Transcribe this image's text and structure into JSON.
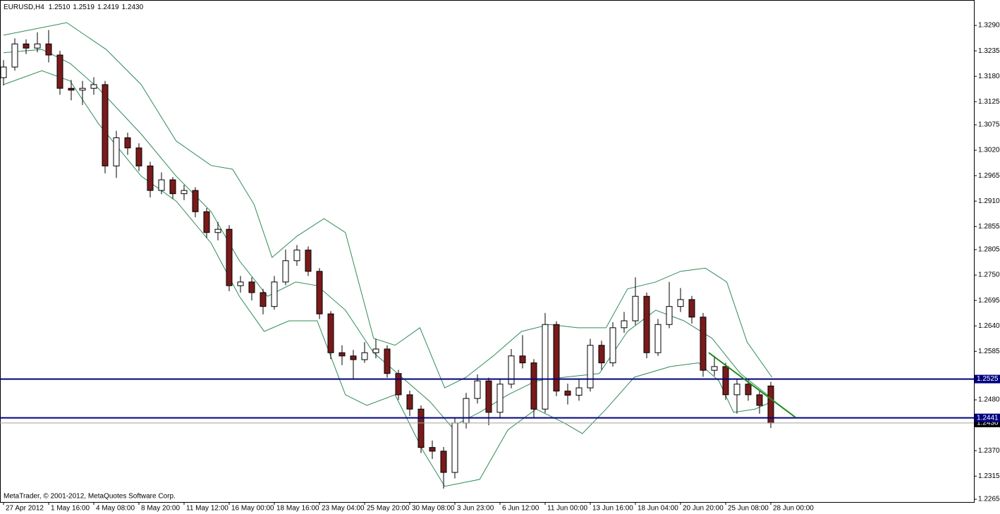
{
  "chart_data": {
    "type": "candlestick",
    "symbol": "EURUSD,H4",
    "quote": [
      "1.2510",
      "1.2519",
      "1.2419",
      "1.2430"
    ],
    "footer": "MetaTrader, © 2001-2012, MetaQuotes Software Corp.",
    "categories": [
      "27 Apr 2012",
      null,
      null,
      null,
      "1 May 16:00",
      null,
      null,
      null,
      "4 May 08:00",
      null,
      null,
      null,
      "8 May 20:00",
      null,
      null,
      null,
      "11 May 12:00",
      null,
      null,
      null,
      "16 May 00:00",
      null,
      null,
      null,
      "18 May 16:00",
      null,
      null,
      null,
      "23 May 04:00",
      null,
      null,
      null,
      "25 May 20:00",
      null,
      null,
      null,
      "30 May 08:00",
      null,
      null,
      null,
      "3 Jun 23:00",
      null,
      null,
      null,
      "6 Jun 12:00",
      null,
      null,
      null,
      "11 Jun 00:00",
      null,
      null,
      null,
      "13 Jun 16:00",
      null,
      null,
      null,
      "18 Jun 04:00",
      null,
      null,
      null,
      "20 Jun 20:00",
      null,
      null,
      null,
      "25 Jun 08:00",
      null,
      null,
      null,
      "28 Jun 00:00"
    ],
    "open": [
      1.3177,
      1.32,
      1.325,
      1.3241,
      1.325,
      1.3226,
      1.3154,
      1.315,
      1.3154,
      1.3162,
      1.2986,
      1.3047,
      1.3025,
      1.2986,
      1.2933,
      1.2956,
      1.2926,
      1.2933,
      1.2887,
      1.2842,
      1.2849,
      1.2727,
      1.2735,
      1.2712,
      1.2682,
      1.2735,
      1.2781,
      1.2804,
      1.2758,
      1.2666,
      1.2582,
      1.2575,
      1.2567,
      1.2582,
      1.259,
      1.2537,
      1.2491,
      1.246,
      1.2377,
      1.2369,
      1.2323,
      1.243,
      1.2483,
      1.2521,
      1.2453,
      1.2514,
      1.2575,
      1.256,
      1.246,
      1.2643,
      1.2499,
      1.249,
      1.2506,
      1.2598,
      1.256,
      1.2636,
      1.2651,
      1.2704,
      1.2582,
      1.2643,
      1.2682,
      1.2697,
      1.2659,
      1.2544,
      1.2552,
      1.2491,
      1.2514,
      1.2491,
      1.251
    ],
    "high": [
      1.3215,
      1.3262,
      1.326,
      1.3275,
      1.328,
      1.3235,
      1.3172,
      1.317,
      1.3178,
      1.317,
      1.3062,
      1.3058,
      1.3035,
      1.2995,
      1.2972,
      1.2962,
      1.2945,
      1.294,
      1.2895,
      1.2865,
      1.2858,
      1.2748,
      1.2745,
      1.272,
      1.2748,
      1.2805,
      1.2815,
      1.2812,
      1.2765,
      1.2672,
      1.2598,
      1.2588,
      1.2605,
      1.2612,
      1.2598,
      1.2545,
      1.25,
      1.2468,
      1.2392,
      1.2378,
      1.244,
      1.2495,
      1.2535,
      1.2528,
      1.2525,
      1.259,
      1.262,
      1.2568,
      1.2668,
      1.265,
      1.2515,
      1.2525,
      1.2612,
      1.2608,
      1.2648,
      1.267,
      1.2745,
      1.2712,
      1.2655,
      1.2735,
      1.2722,
      1.2705,
      1.2668,
      1.2575,
      1.256,
      1.2525,
      1.2522,
      1.25,
      1.2519
    ],
    "low": [
      1.316,
      1.3192,
      1.3228,
      1.3232,
      1.321,
      1.314,
      1.3128,
      1.3118,
      1.314,
      1.297,
      1.296,
      1.301,
      1.2975,
      1.2918,
      1.2925,
      1.2915,
      1.2912,
      1.2875,
      1.283,
      1.2825,
      1.2715,
      1.2712,
      1.2695,
      1.2665,
      1.2675,
      1.2728,
      1.277,
      1.2748,
      1.2655,
      1.2568,
      1.2555,
      1.2525,
      1.256,
      1.257,
      1.2528,
      1.248,
      1.2445,
      1.2365,
      1.2352,
      1.2288,
      1.231,
      1.2418,
      1.2472,
      1.2425,
      1.244,
      1.2505,
      1.2548,
      1.244,
      1.2452,
      1.2488,
      1.247,
      1.2478,
      1.2498,
      1.2545,
      1.2552,
      1.2625,
      1.2642,
      1.257,
      1.2575,
      1.2635,
      1.267,
      1.2645,
      1.253,
      1.2532,
      1.248,
      1.245,
      1.2478,
      1.245,
      1.2419
    ],
    "close": [
      1.32,
      1.325,
      1.3241,
      1.325,
      1.3226,
      1.3154,
      1.315,
      1.3154,
      1.3162,
      1.2986,
      1.3047,
      1.3025,
      1.2986,
      1.2933,
      1.2956,
      1.2926,
      1.2933,
      1.2887,
      1.2842,
      1.2849,
      1.2727,
      1.2735,
      1.2712,
      1.2682,
      1.2735,
      1.2781,
      1.2804,
      1.2758,
      1.2666,
      1.2582,
      1.2575,
      1.2567,
      1.2582,
      1.259,
      1.2537,
      1.2491,
      1.246,
      1.2377,
      1.2369,
      1.2323,
      1.243,
      1.2483,
      1.2521,
      1.2453,
      1.2514,
      1.2575,
      1.256,
      1.246,
      1.2643,
      1.2499,
      1.249,
      1.2506,
      1.2598,
      1.256,
      1.2636,
      1.2651,
      1.2704,
      1.2582,
      1.2643,
      1.2682,
      1.2697,
      1.2659,
      1.2544,
      1.2552,
      1.2491,
      1.2514,
      1.2491,
      1.2468,
      1.243
    ],
    "up_color": "#ffffff",
    "down_color": "#7a1a1a",
    "wick_color": "#000000",
    "bands": [
      {
        "color": "#2e8b57",
        "x": [
          0,
          5.6,
          9.1,
          12.2,
          15.3,
          18.4,
          20.3,
          22.2,
          23.8,
          26,
          28.4,
          30.3,
          32.8,
          34.7,
          36.9,
          39.1,
          41,
          43.4,
          45.9,
          48.4,
          50.9,
          53.4,
          55.3,
          57.8,
          60,
          62.2,
          64.1,
          65.9,
          68.1
        ],
        "values": [
          1.3269,
          1.3296,
          1.3238,
          1.3162,
          1.304,
          1.2987,
          1.2979,
          1.2903,
          1.2788,
          1.2834,
          1.2872,
          1.2842,
          1.2613,
          1.2598,
          1.2636,
          1.2506,
          1.2529,
          1.2575,
          1.2628,
          1.2643,
          1.2636,
          1.2636,
          1.272,
          1.2735,
          1.2758,
          1.2765,
          1.2735,
          1.2605,
          1.2529
        ]
      },
      {
        "color": "#2e8b57",
        "x": [
          0,
          3.4,
          5.9,
          8.4,
          12.2,
          15.3,
          18.4,
          20.9,
          23.4,
          25.9,
          27.8,
          30.3,
          32.8,
          35.3,
          37.8,
          39.7,
          42.2,
          44.7,
          47.2,
          49.7,
          52.8,
          55.3,
          57.8,
          60.3,
          62.8,
          65.3,
          68.1
        ],
        "values": [
          1.3231,
          1.3238,
          1.3208,
          1.3154,
          1.3055,
          1.2964,
          1.2887,
          1.2781,
          1.2704,
          1.2735,
          1.2727,
          1.2674,
          1.2582,
          1.2529,
          1.2476,
          1.2422,
          1.2453,
          1.2491,
          1.2521,
          1.2529,
          1.2537,
          1.2628,
          1.2674,
          1.2651,
          1.2613,
          1.2537,
          1.2483
        ]
      },
      {
        "color": "#2e8b57",
        "x": [
          0,
          3.4,
          5.9,
          8.4,
          12.2,
          15.3,
          18.4,
          20.9,
          23.1,
          25.3,
          27.8,
          30.3,
          32.2,
          34.7,
          37.2,
          39.1,
          42.2,
          44.7,
          47.2,
          49.7,
          51.3,
          53.4,
          55.9,
          59.1,
          61.6,
          63.4,
          64.7,
          66.6,
          68.1
        ],
        "values": [
          1.3162,
          1.3192,
          1.317,
          1.3078,
          1.2964,
          1.291,
          1.2819,
          1.2704,
          1.2628,
          1.2651,
          1.2651,
          1.2491,
          1.2468,
          1.2491,
          1.2369,
          1.2293,
          1.2308,
          1.2415,
          1.246,
          1.243,
          1.2407,
          1.246,
          1.2529,
          1.2552,
          1.256,
          1.2521,
          1.2453,
          1.246,
          1.2476
        ]
      }
    ],
    "hlines": [
      {
        "value": 1.2525,
        "label": "1.2525",
        "color": "#000080"
      },
      {
        "value": 1.2441,
        "label": "1.2441",
        "color": "#000080"
      }
    ],
    "bid": {
      "value": 1.243,
      "label": "1.2430",
      "color": "#a0a0a0"
    },
    "trendline": {
      "color": "#1f8a1f",
      "x": [
        62.5,
        70.2
      ],
      "values": [
        1.2582,
        1.2442
      ]
    },
    "xlim": [
      -0.3125,
      86
    ],
    "ylim": [
      1.2259,
      1.3345
    ],
    "yticks": [
      {
        "value": 1.329,
        "label": "1.3290"
      },
      1.3235,
      {
        "value": 1.318,
        "label": "1.3180"
      },
      1.3125,
      1.3075,
      {
        "value": 1.302,
        "label": "1.3020"
      },
      1.2965,
      {
        "value": 1.291,
        "label": "1.2910"
      },
      1.2855,
      1.2805,
      {
        "value": 1.275,
        "label": "1.2750"
      },
      1.2695,
      {
        "value": 1.264,
        "label": "1.2640"
      },
      1.2585,
      {
        "value": 1.248,
        "label": "1.2480"
      },
      {
        "value": 1.237,
        "label": "1.2370"
      },
      1.2315,
      1.2265
    ],
    "grid": false
  }
}
